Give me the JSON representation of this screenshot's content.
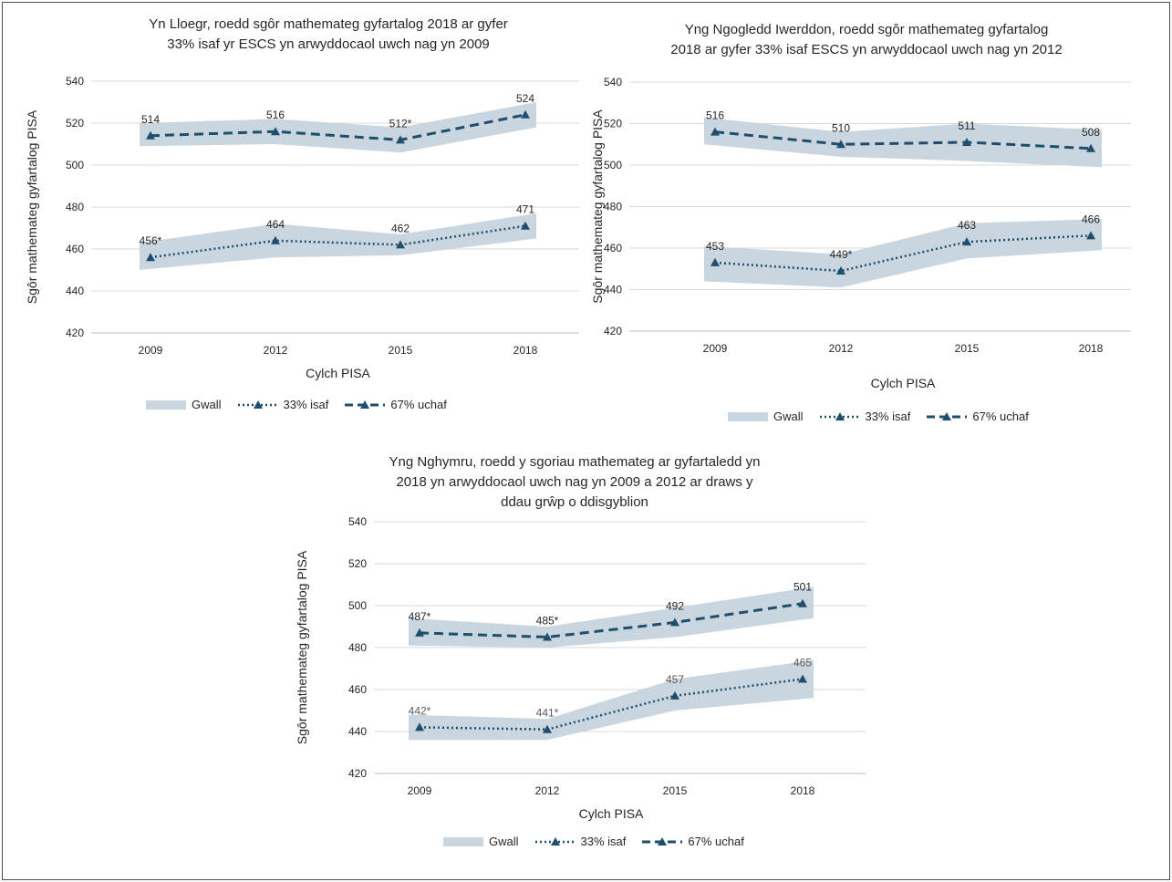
{
  "colors": {
    "band": "#c9d6e0",
    "line": "#1f4e6d",
    "grid": "#d9d9d9",
    "axis": "#bfbfbf",
    "text": "#262626",
    "label_grey": "#595959"
  },
  "legend": {
    "band": "Gwall",
    "low": "33% isaf",
    "high": "67% uchaf"
  },
  "chart_data": [
    {
      "type": "line",
      "title": "Yn Lloegr, roedd sgôr mathemateg gyfartalog 2018 ar gyfer\n33% isaf yr ESCS yn arwyddocaol uwch nag yn 2009",
      "xlabel": "Cylch PISA",
      "ylabel": "Sgôr mathemateg gyfartalog PISA",
      "ylim": [
        420,
        540
      ],
      "yticks": [
        "420",
        "440",
        "460",
        "480",
        "500",
        "520",
        "540"
      ],
      "categories": [
        "2009",
        "2012",
        "2015",
        "2018"
      ],
      "grid": true,
      "legend_position": "bottom",
      "series": [
        {
          "name": "33% isaf",
          "style": "dotted",
          "values": [
            456,
            464,
            462,
            471
          ],
          "labels": [
            "456*",
            "464",
            "462",
            "471"
          ],
          "band_low": [
            450,
            456,
            457,
            465
          ],
          "band_high": [
            463,
            472,
            467,
            477
          ]
        },
        {
          "name": "67% uchaf",
          "style": "dashed",
          "values": [
            514,
            516,
            512,
            524
          ],
          "labels": [
            "514",
            "516",
            "512*",
            "524"
          ],
          "band_low": [
            509,
            510,
            506,
            518
          ],
          "band_high": [
            520,
            522,
            518,
            530
          ]
        }
      ]
    },
    {
      "type": "line",
      "title": "Yng Ngogledd Iwerddon, roedd sgôr mathemateg gyfartalog\n2018 ar gyfer 33% isaf ESCS yn arwyddocaol uwch nag yn 2012",
      "xlabel": "Cylch PISA",
      "ylabel": "Sgôr mathemateg gyfartalog PISA",
      "ylim": [
        420,
        540
      ],
      "yticks": [
        "420",
        "440",
        "460",
        "480",
        "500",
        "520",
        "540"
      ],
      "categories": [
        "2009",
        "2012",
        "2015",
        "2018"
      ],
      "grid": true,
      "legend_position": "bottom",
      "series": [
        {
          "name": "33% isaf",
          "style": "dotted",
          "values": [
            453,
            449,
            463,
            466
          ],
          "labels": [
            "453",
            "449*",
            "463",
            "466"
          ],
          "band_low": [
            444,
            441,
            455,
            459
          ],
          "band_high": [
            461,
            457,
            472,
            474
          ]
        },
        {
          "name": "67% uchaf",
          "style": "dashed",
          "values": [
            516,
            510,
            511,
            508
          ],
          "labels": [
            "516",
            "510",
            "511",
            "508"
          ],
          "band_low": [
            510,
            504,
            502,
            499
          ],
          "band_high": [
            523,
            516,
            520,
            517
          ]
        }
      ]
    },
    {
      "type": "line",
      "title": "Yng Nghymru, roedd y sgoriau mathemateg ar gyfartaledd yn\n2018 yn arwyddocaol uwch nag yn 2009 a 2012 ar draws y\nddau grŵp o ddisgyblion",
      "xlabel": "Cylch PISA",
      "ylabel": "Sgôr mathemateg gyfartalog PISA",
      "ylim": [
        420,
        540
      ],
      "yticks": [
        "420",
        "440",
        "460",
        "480",
        "500",
        "520",
        "540"
      ],
      "categories": [
        "2009",
        "2012",
        "2015",
        "2018"
      ],
      "grid": true,
      "legend_position": "bottom",
      "series": [
        {
          "name": "33% isaf",
          "style": "dotted",
          "values": [
            442,
            441,
            457,
            465
          ],
          "labels": [
            "442*",
            "441*",
            "457",
            "465"
          ],
          "band_low": [
            436,
            436,
            450,
            456
          ],
          "band_high": [
            448,
            446,
            465,
            474
          ]
        },
        {
          "name": "67% uchaf",
          "style": "dashed",
          "values": [
            487,
            485,
            492,
            501
          ],
          "labels": [
            "487*",
            "485*",
            "492",
            "501"
          ],
          "band_low": [
            481,
            480,
            485,
            494
          ],
          "band_high": [
            494,
            490,
            499,
            509
          ]
        }
      ]
    }
  ]
}
